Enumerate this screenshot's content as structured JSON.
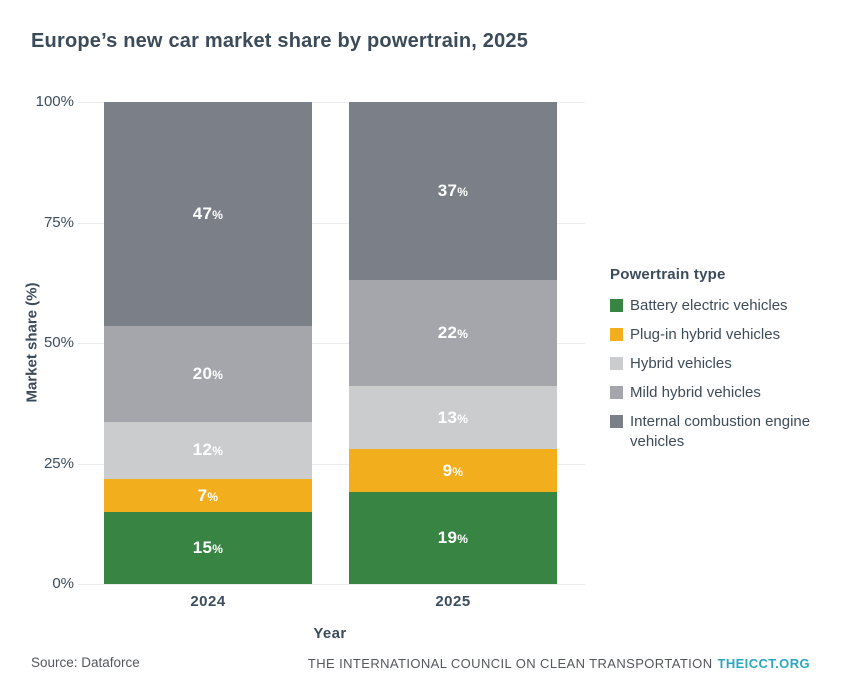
{
  "title": "Europe’s new car market share by powertrain, 2025",
  "chart_data": {
    "type": "bar",
    "stacked": true,
    "categories": [
      "2024",
      "2025"
    ],
    "series": [
      {
        "name": "Battery electric vehicles",
        "color": "#388443",
        "values": [
          15,
          19
        ]
      },
      {
        "name": "Plug-in hybrid vehicles",
        "color": "#f2ae1c",
        "values": [
          7,
          9
        ]
      },
      {
        "name": "Hybrid vehicles",
        "color": "#cbccce",
        "values": [
          12,
          13
        ]
      },
      {
        "name": "Mild hybrid vehicles",
        "color": "#a4a6ab",
        "values": [
          20,
          22
        ]
      },
      {
        "name": "Internal combustion engine vehicles",
        "color": "#7a7f88",
        "values": [
          47,
          37
        ]
      }
    ],
    "xlabel": "Year",
    "ylabel": "Market share (%)",
    "ylim": [
      0,
      100
    ],
    "y_ticks": [
      0,
      25,
      50,
      75,
      100
    ],
    "y_tick_labels": [
      "0%",
      "25%",
      "50%",
      "75%",
      "100%"
    ],
    "grid": true,
    "legend_title": "Powertrain type",
    "legend_position": "right",
    "value_label_unit": "%"
  },
  "units": {
    "percent": "%"
  },
  "footer": {
    "source": "Source: Dataforce",
    "org": "THE INTERNATIONAL COUNCIL ON CLEAN TRANSPORTATION",
    "org_link": "THEICCT.ORG"
  },
  "colors": {
    "text_slate": "#3c4b59",
    "footer_gray": "#54575c",
    "accent_teal": "#2ba7bf",
    "gridline": "#ececee",
    "background": "#ffffff"
  }
}
